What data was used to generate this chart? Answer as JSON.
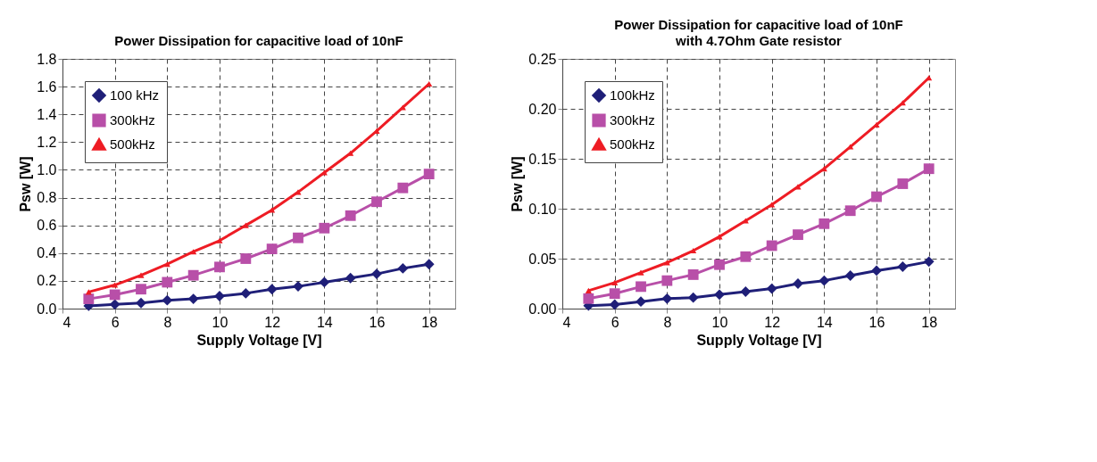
{
  "chart_data": [
    {
      "type": "line",
      "title": "Power Dissipation for capacitive load of 10nF",
      "xlabel": "Supply Voltage [V]",
      "ylabel": "Psw [W]",
      "x": [
        5,
        6,
        7,
        8,
        9,
        10,
        11,
        12,
        13,
        14,
        15,
        16,
        17,
        18
      ],
      "series": [
        {
          "name": "100 kHz",
          "color": "#1f1f78",
          "marker": "diamond",
          "values": [
            0.02,
            0.03,
            0.04,
            0.06,
            0.07,
            0.09,
            0.11,
            0.14,
            0.16,
            0.19,
            0.22,
            0.25,
            0.29,
            0.32
          ]
        },
        {
          "name": "300kHz",
          "color": "#b84fa8",
          "marker": "square",
          "values": [
            0.07,
            0.1,
            0.14,
            0.19,
            0.24,
            0.3,
            0.36,
            0.43,
            0.51,
            0.58,
            0.67,
            0.77,
            0.87,
            0.97
          ]
        },
        {
          "name": "500kHz",
          "color": "#ee1c24",
          "marker": "triangle",
          "values": [
            0.12,
            0.17,
            0.24,
            0.32,
            0.41,
            0.49,
            0.6,
            0.71,
            0.84,
            0.98,
            1.12,
            1.28,
            1.45,
            1.62
          ]
        }
      ],
      "xlim": [
        4,
        19
      ],
      "xticks": [
        4,
        6,
        8,
        10,
        12,
        14,
        16,
        18
      ],
      "ylim": [
        0,
        1.8
      ],
      "yticks": [
        {
          "value": 0,
          "label": "0.0"
        },
        {
          "value": 0.2,
          "label": "0.2"
        },
        {
          "value": 0.4,
          "label": "0.4"
        },
        {
          "value": 0.6,
          "label": "0.6"
        },
        {
          "value": 0.8,
          "label": "0.8"
        },
        {
          "value": 1,
          "label": "1.0"
        },
        {
          "value": 1.2,
          "label": "1.2"
        },
        {
          "value": 1.4,
          "label": "1.4"
        },
        {
          "value": 1.6,
          "label": "1.6"
        },
        {
          "value": 1.8,
          "label": "1.8"
        }
      ],
      "grid": true,
      "legend": "top left",
      "line_style": "solid"
    },
    {
      "type": "line",
      "title": "Power Dissipation for capacitive load of 10nF",
      "subtitle": "with 4.7Ohm Gate resistor",
      "xlabel": "Supply Voltage [V]",
      "ylabel": "Psw [W]",
      "x": [
        5,
        6,
        7,
        8,
        9,
        10,
        11,
        12,
        13,
        14,
        15,
        16,
        17,
        18
      ],
      "series": [
        {
          "name": "100kHz",
          "color": "#1f1f78",
          "marker": "diamond",
          "values": [
            0.003,
            0.004,
            0.007,
            0.01,
            0.011,
            0.014,
            0.017,
            0.02,
            0.025,
            0.028,
            0.033,
            0.038,
            0.042,
            0.047
          ]
        },
        {
          "name": "300kHz",
          "color": "#b84fa8",
          "marker": "square",
          "values": [
            0.01,
            0.015,
            0.022,
            0.028,
            0.034,
            0.044,
            0.052,
            0.063,
            0.074,
            0.085,
            0.098,
            0.112,
            0.125,
            0.14
          ]
        },
        {
          "name": "500kHz",
          "color": "#ee1c24",
          "marker": "triangle",
          "values": [
            0.018,
            0.026,
            0.036,
            0.046,
            0.058,
            0.072,
            0.088,
            0.104,
            0.122,
            0.14,
            0.162,
            0.184,
            0.206,
            0.231
          ]
        }
      ],
      "xlim": [
        4,
        19
      ],
      "xticks": [
        4,
        6,
        8,
        10,
        12,
        14,
        16,
        18
      ],
      "ylim": [
        0,
        0.25
      ],
      "yticks": [
        {
          "value": 0,
          "label": "0.00"
        },
        {
          "value": 0.05,
          "label": "0.05"
        },
        {
          "value": 0.1,
          "label": "0.10"
        },
        {
          "value": 0.15,
          "label": "0.15"
        },
        {
          "value": 0.2,
          "label": "0.20"
        },
        {
          "value": 0.25,
          "label": "0.25"
        }
      ],
      "grid": true,
      "legend": "top left",
      "line_style": "solid"
    }
  ]
}
